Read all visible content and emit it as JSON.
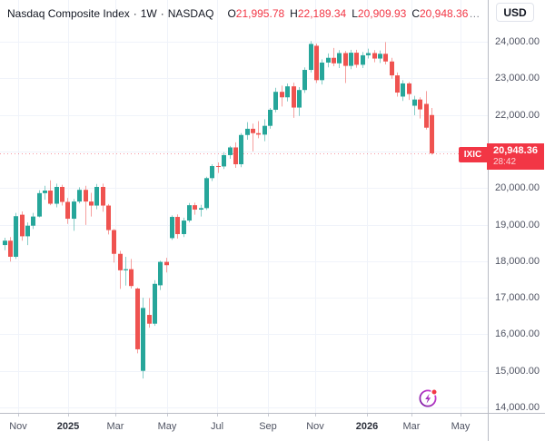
{
  "header": {
    "title": "Nasdaq Composite Index",
    "separator": "·",
    "interval": "1W",
    "exchange": "NASDAQ",
    "ohlc": [
      {
        "label": "O",
        "value": "21,995.78"
      },
      {
        "label": "H",
        "value": "22,189.34"
      },
      {
        "label": "L",
        "value": "20,909.93"
      },
      {
        "label": "C",
        "value": "20,948.36"
      }
    ],
    "more": "…",
    "currency": "USD"
  },
  "last_price": {
    "symbol": "IXIC",
    "value": "20,948.36",
    "countdown": "28:42"
  },
  "price_scale": {
    "ticks": [
      "24,000.00",
      "23,000.00",
      "22,000.00",
      "21,000.00",
      "20,000.00",
      "19,000.00",
      "18,000.00",
      "17,000.00",
      "16,000.00",
      "15,000.00",
      "14,000.00"
    ]
  },
  "time_scale": {
    "ticks": [
      {
        "label": "Nov",
        "year": false
      },
      {
        "label": "2025",
        "year": true
      },
      {
        "label": "Mar",
        "year": false
      },
      {
        "label": "May",
        "year": false
      },
      {
        "label": "Jul",
        "year": false
      },
      {
        "label": "Sep",
        "year": false
      },
      {
        "label": "Nov",
        "year": false
      },
      {
        "label": "2026",
        "year": true
      },
      {
        "label": "Mar",
        "year": false
      },
      {
        "label": "May",
        "year": false
      }
    ]
  },
  "colors": {
    "up": "#26a69a",
    "down": "#ef5350",
    "accent_red": "#f23645",
    "grid": "#f0f3fa",
    "background": "#ffffff",
    "title_text": "#131722",
    "axis_text": "#4f5362",
    "purple_icon": "#9c27b0"
  },
  "chart_data": {
    "type": "candlestick",
    "title": "Nasdaq Composite Index",
    "symbol": "IXIC",
    "interval": "1W",
    "currency": "USD",
    "legend_position": "top-left",
    "grid": true,
    "y_axis": {
      "min": 14000,
      "max": 24000,
      "tick_step": 1000,
      "label_format": "#,###.00"
    },
    "x_axis": {
      "labels": [
        "Nov",
        "2025",
        "Mar",
        "May",
        "Jul",
        "Sep",
        "Nov",
        "2026",
        "Mar",
        "May"
      ]
    },
    "last_price": 20948.36,
    "last_price_line": {
      "style": "dotted",
      "color": "#f23645"
    },
    "last_candle_ohlc": {
      "open": 21995.78,
      "high": 22189.34,
      "low": 20909.93,
      "close": 20948.36
    },
    "candles": [
      [
        18440,
        18640,
        18300,
        18560
      ],
      [
        18560,
        18660,
        17990,
        18120
      ],
      [
        18120,
        19320,
        18060,
        19230
      ],
      [
        19270,
        19360,
        18560,
        18680
      ],
      [
        18680,
        19060,
        18440,
        18970
      ],
      [
        18970,
        19320,
        18880,
        19220
      ],
      [
        19220,
        19940,
        19200,
        19860
      ],
      [
        19860,
        20060,
        19680,
        19930
      ],
      [
        19930,
        20210,
        19530,
        19570
      ],
      [
        19570,
        20120,
        19470,
        20030
      ],
      [
        20030,
        20090,
        19520,
        19620
      ],
      [
        19620,
        19730,
        19020,
        19160
      ],
      [
        19160,
        19700,
        18830,
        19630
      ],
      [
        19630,
        20020,
        19580,
        19950
      ],
      [
        19950,
        20060,
        18990,
        19630
      ],
      [
        19630,
        19870,
        19220,
        19520
      ],
      [
        19520,
        20110,
        19420,
        20030
      ],
      [
        20030,
        20120,
        19350,
        19520
      ],
      [
        19520,
        19560,
        18730,
        18850
      ],
      [
        18850,
        18880,
        17960,
        18200
      ],
      [
        18200,
        18280,
        17240,
        17750
      ],
      [
        17750,
        18120,
        17330,
        17780
      ],
      [
        17780,
        18060,
        17250,
        17320
      ],
      [
        17250,
        17280,
        15480,
        15590
      ],
      [
        15000,
        17000,
        14790,
        16720
      ],
      [
        16530,
        16990,
        16180,
        16290
      ],
      [
        16290,
        17480,
        16230,
        17380
      ],
      [
        17340,
        18010,
        17210,
        17980
      ],
      [
        17980,
        18090,
        17690,
        17890
      ],
      [
        18630,
        19250,
        18580,
        19210
      ],
      [
        19210,
        19280,
        18620,
        18740
      ],
      [
        18740,
        19190,
        18660,
        19110
      ],
      [
        19110,
        19590,
        19060,
        19530
      ],
      [
        19530,
        19600,
        19270,
        19410
      ],
      [
        19410,
        19540,
        19220,
        19450
      ],
      [
        19450,
        20310,
        19400,
        20270
      ],
      [
        20270,
        20650,
        20190,
        20600
      ],
      [
        20600,
        20700,
        20410,
        20590
      ],
      [
        20590,
        20980,
        20520,
        20900
      ],
      [
        20900,
        21150,
        20800,
        21110
      ],
      [
        21110,
        21250,
        20550,
        20650
      ],
      [
        20650,
        21500,
        20570,
        21450
      ],
      [
        21450,
        21800,
        21320,
        21620
      ],
      [
        21620,
        21760,
        21000,
        21500
      ],
      [
        21500,
        21830,
        21360,
        21460
      ],
      [
        21460,
        21880,
        21280,
        21700
      ],
      [
        21700,
        22190,
        21620,
        22140
      ],
      [
        22140,
        22740,
        22070,
        22630
      ],
      [
        22630,
        22800,
        22230,
        22480
      ],
      [
        22480,
        22860,
        22370,
        22780
      ],
      [
        22780,
        22880,
        21920,
        22200
      ],
      [
        22200,
        22760,
        21970,
        22680
      ],
      [
        22680,
        23300,
        22600,
        23230
      ],
      [
        23230,
        24020,
        23160,
        23940
      ],
      [
        23890,
        23950,
        22870,
        22950
      ],
      [
        22950,
        23520,
        22830,
        23430
      ],
      [
        23430,
        23680,
        23300,
        23560
      ],
      [
        23560,
        23830,
        23330,
        23410
      ],
      [
        23410,
        23770,
        23280,
        23690
      ],
      [
        23690,
        23750,
        22870,
        23340
      ],
      [
        23340,
        23780,
        23250,
        23700
      ],
      [
        23700,
        23780,
        23290,
        23370
      ],
      [
        23370,
        23720,
        23280,
        23630
      ],
      [
        23630,
        23810,
        23540,
        23690
      ],
      [
        23690,
        23770,
        23440,
        23540
      ],
      [
        23540,
        23760,
        23420,
        23670
      ],
      [
        23670,
        23990,
        23380,
        23460
      ],
      [
        23460,
        23560,
        22990,
        23080
      ],
      [
        23080,
        23160,
        22500,
        22610
      ],
      [
        22500,
        22950,
        22380,
        22860
      ],
      [
        22860,
        22900,
        22410,
        22570
      ],
      [
        22250,
        22520,
        21990,
        22420
      ],
      [
        22420,
        22480,
        21900,
        22150
      ],
      [
        22300,
        22650,
        21600,
        21650
      ],
      [
        21995.78,
        22189.34,
        20909.93,
        20948.36
      ]
    ]
  }
}
